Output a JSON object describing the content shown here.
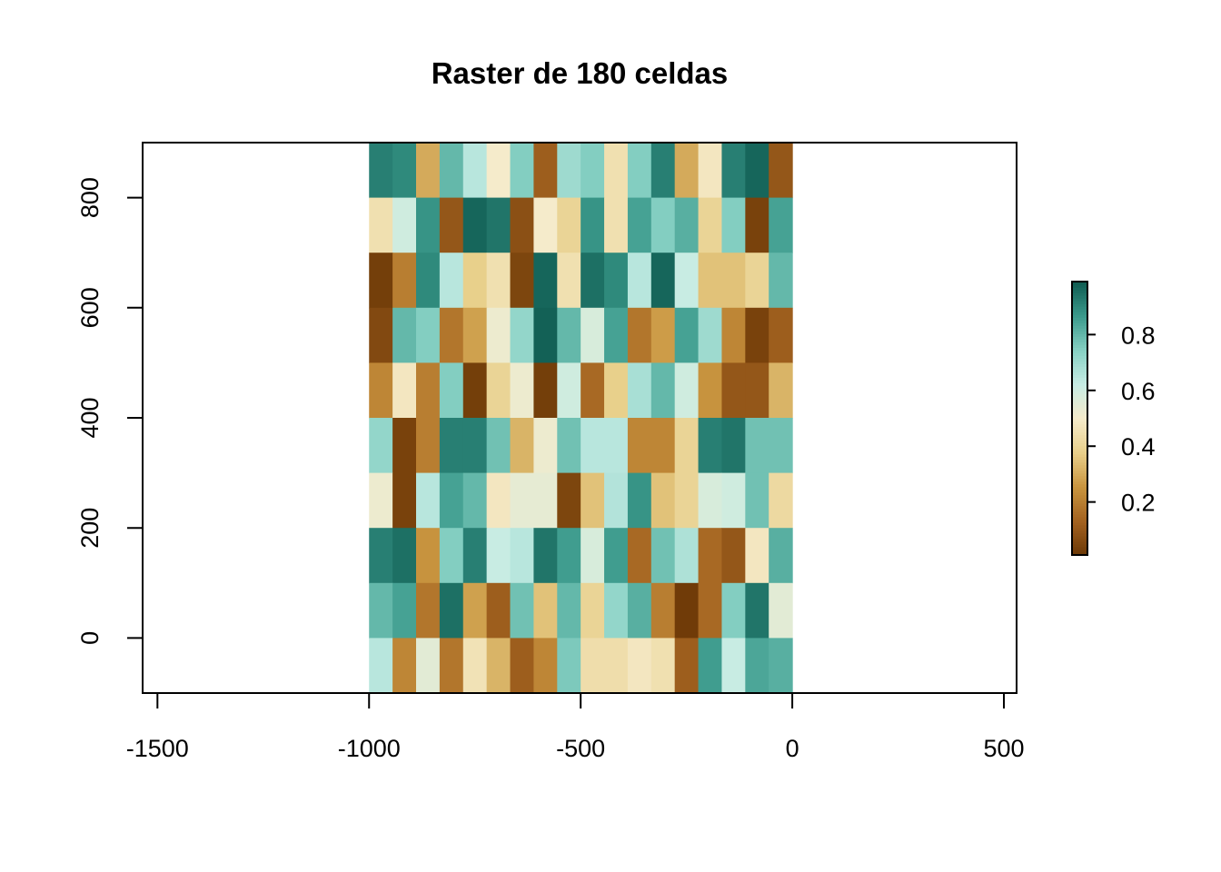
{
  "chart_data": {
    "type": "heatmap",
    "title": "Raster de 180 celdas",
    "xlabel": "",
    "ylabel": "",
    "xlim": [
      -1535,
      530
    ],
    "ylim": [
      -100,
      900
    ],
    "x_ticks": [
      -1500,
      -1000,
      -500,
      0,
      500
    ],
    "x_tick_labels": [
      "-1500",
      "-1000",
      "-500",
      "0",
      "500"
    ],
    "y_ticks": [
      0,
      200,
      400,
      600,
      800
    ],
    "y_tick_labels": [
      "0",
      "200",
      "400",
      "600",
      "800"
    ],
    "raster": {
      "x_min": -1000,
      "x_max": 0,
      "y_min": -100,
      "y_max": 900,
      "ncol": 18,
      "nrow": 10
    },
    "values": [
      [
        0.92,
        0.9,
        0.3,
        0.8,
        0.65,
        0.5,
        0.75,
        0.12,
        0.7,
        0.75,
        0.45,
        0.75,
        0.92,
        0.3,
        0.48,
        0.92,
        0.97,
        0.1
      ],
      [
        0.45,
        0.6,
        0.88,
        0.1,
        0.97,
        0.94,
        0.08,
        0.5,
        0.4,
        0.88,
        0.45,
        0.85,
        0.75,
        0.82,
        0.4,
        0.75,
        0.04,
        0.85
      ],
      [
        0.03,
        0.2,
        0.9,
        0.65,
        0.38,
        0.45,
        0.05,
        0.97,
        0.45,
        0.95,
        0.9,
        0.65,
        0.97,
        0.62,
        0.35,
        0.35,
        0.4,
        0.8
      ],
      [
        0.06,
        0.8,
        0.75,
        0.18,
        0.28,
        0.52,
        0.72,
        0.98,
        0.8,
        0.58,
        0.85,
        0.18,
        0.27,
        0.85,
        0.7,
        0.22,
        0.04,
        0.12
      ],
      [
        0.22,
        0.48,
        0.2,
        0.75,
        0.03,
        0.4,
        0.52,
        0.03,
        0.6,
        0.15,
        0.38,
        0.68,
        0.8,
        0.6,
        0.25,
        0.1,
        0.1,
        0.32
      ],
      [
        0.72,
        0.04,
        0.2,
        0.92,
        0.92,
        0.78,
        0.32,
        0.52,
        0.78,
        0.65,
        0.65,
        0.22,
        0.22,
        0.4,
        0.92,
        0.94,
        0.78,
        0.78
      ],
      [
        0.52,
        0.04,
        0.65,
        0.85,
        0.8,
        0.48,
        0.54,
        0.54,
        0.05,
        0.35,
        0.66,
        0.88,
        0.35,
        0.4,
        0.58,
        0.6,
        0.78,
        0.42
      ],
      [
        0.92,
        0.95,
        0.25,
        0.75,
        0.92,
        0.62,
        0.65,
        0.94,
        0.86,
        0.58,
        0.86,
        0.15,
        0.78,
        0.67,
        0.15,
        0.1,
        0.48,
        0.82
      ],
      [
        0.8,
        0.85,
        0.18,
        0.95,
        0.28,
        0.12,
        0.78,
        0.35,
        0.8,
        0.4,
        0.72,
        0.82,
        0.2,
        0.02,
        0.15,
        0.75,
        0.94,
        0.55
      ],
      [
        0.65,
        0.22,
        0.55,
        0.18,
        0.46,
        0.32,
        0.12,
        0.22,
        0.76,
        0.44,
        0.44,
        0.48,
        0.45,
        0.12,
        0.86,
        0.62,
        0.84,
        0.82
      ]
    ],
    "legend": {
      "placement": "right",
      "range": [
        0.01,
        0.99
      ],
      "ticks": [
        0.2,
        0.4,
        0.6,
        0.8
      ],
      "tick_labels": [
        "0.2",
        "0.4",
        "0.6",
        "0.8"
      ]
    },
    "palette": [
      "#6B3806",
      "#A36220",
      "#C9953F",
      "#E8CF8A",
      "#F5EBCB",
      "#C7ECE4",
      "#86D0C3",
      "#3B9A8C",
      "#0F5C51"
    ],
    "grid": false
  }
}
